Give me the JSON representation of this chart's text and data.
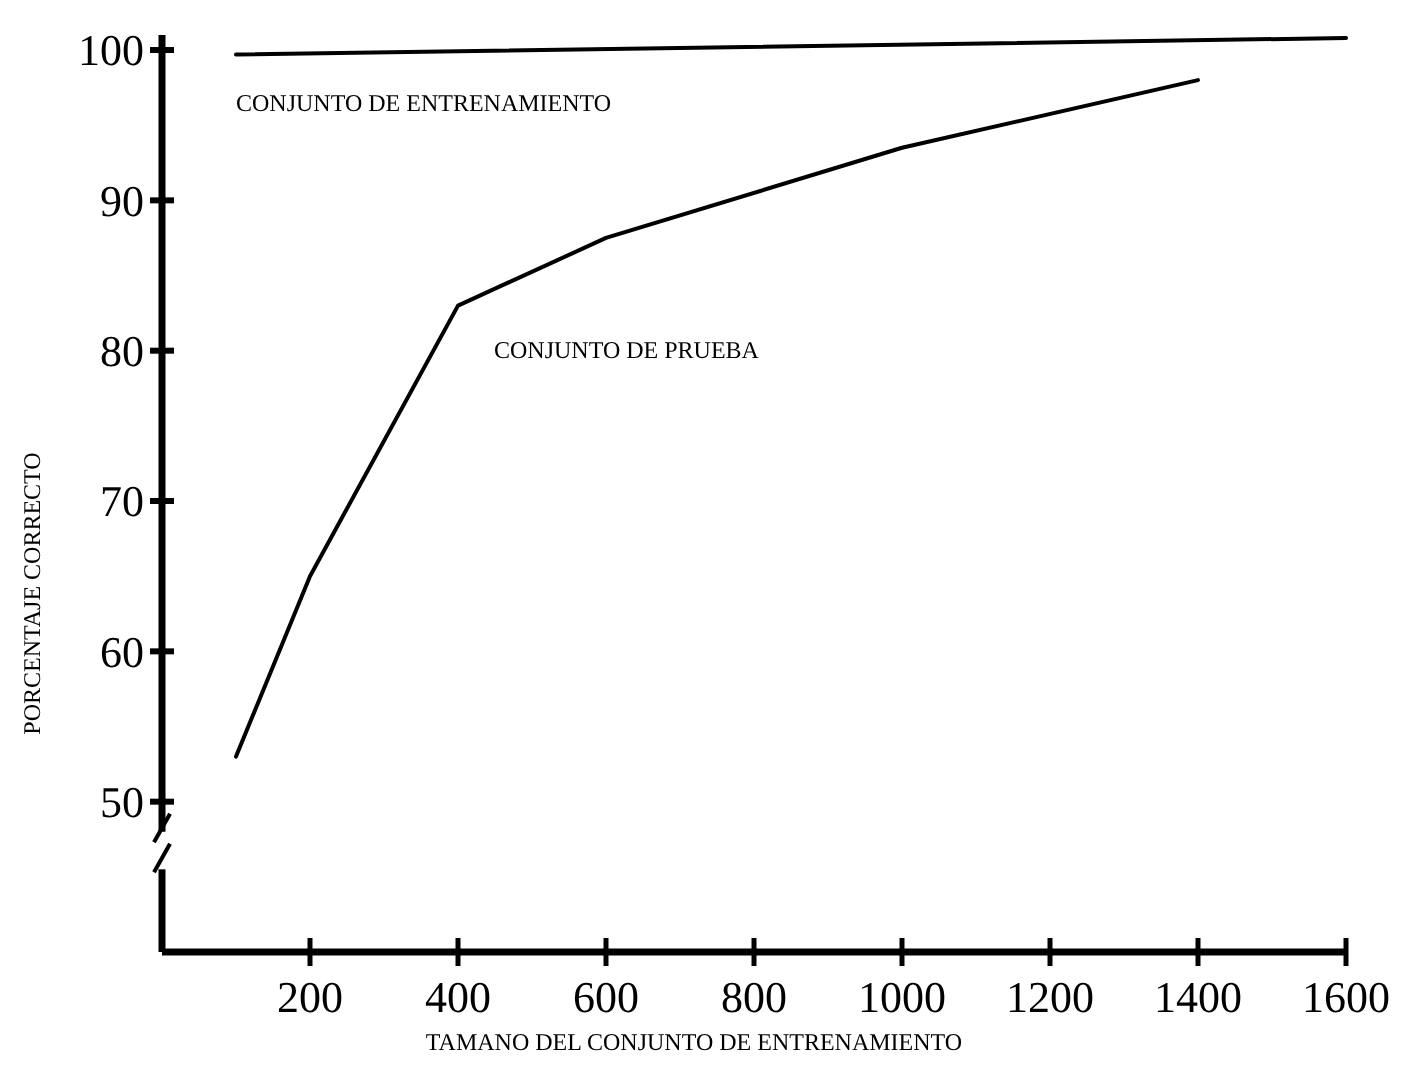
{
  "chart_data": {
    "type": "line",
    "xlabel": "TAMANO DEL CONJUNTO DE ENTRENAMIENTO",
    "ylabel": "PORCENTAJE CORRECTO",
    "xlim": [
      0,
      1600
    ],
    "xticks": [
      200,
      400,
      600,
      800,
      1000,
      1200,
      1400,
      1600
    ],
    "ylim": [
      40,
      101
    ],
    "yticks": [
      50,
      60,
      70,
      80,
      90,
      100
    ],
    "grid": false,
    "marker": "none",
    "line_style": "solid",
    "series": [
      {
        "name": "CONJUNTO DE ENTRENAMIENTO",
        "color": "#000000",
        "x": [
          100,
          1600
        ],
        "values": [
          99.7,
          100.8
        ]
      },
      {
        "name": "CONJUNTO DE PRUEBA",
        "color": "#000000",
        "x": [
          100,
          200,
          400,
          600,
          1000,
          1400
        ],
        "values": [
          53,
          65,
          83,
          87.5,
          93.5,
          98
        ]
      }
    ]
  }
}
